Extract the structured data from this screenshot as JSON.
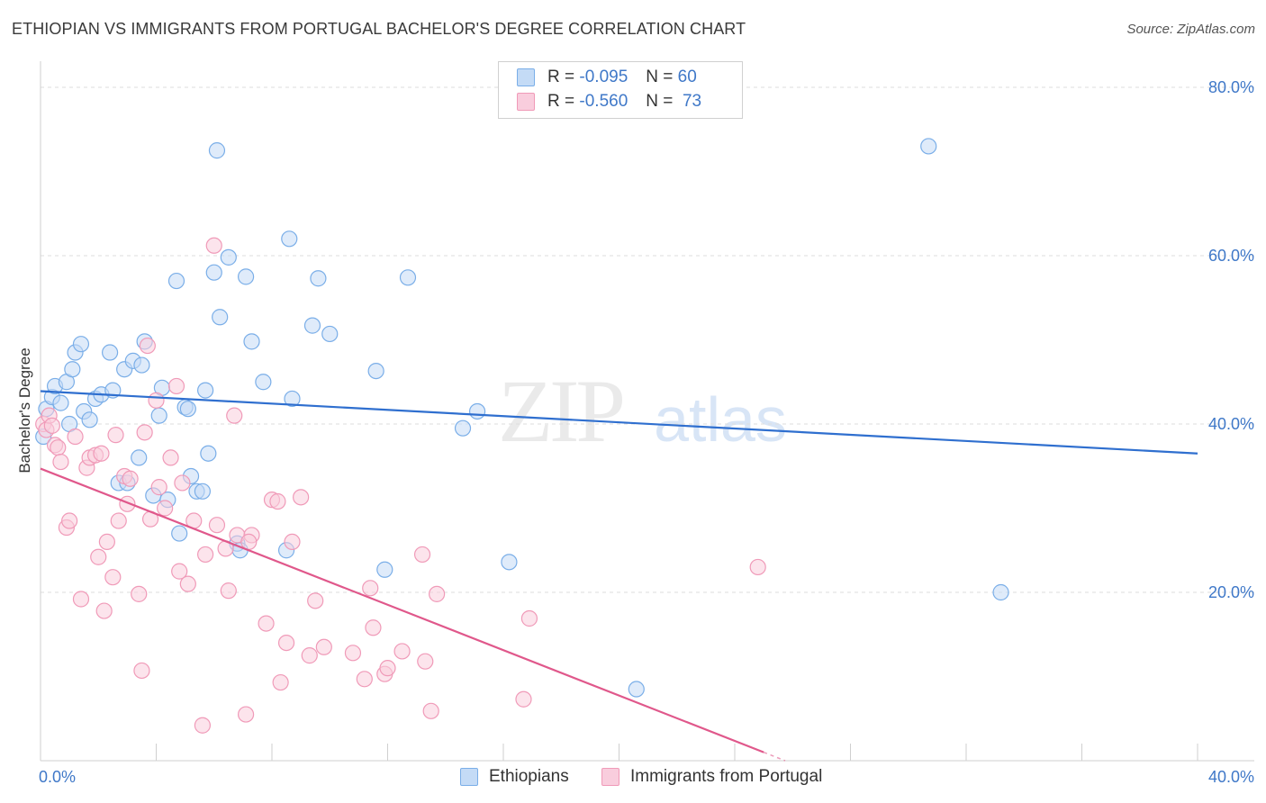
{
  "title": "ETHIOPIAN VS IMMIGRANTS FROM PORTUGAL BACHELOR'S DEGREE CORRELATION CHART",
  "source": "Source: ZipAtlas.com",
  "watermark": {
    "zip": "ZIP",
    "atlas": "atlas"
  },
  "legend": {
    "rows": [
      {
        "r_label": "R =",
        "r_value": "-0.095",
        "n_label": "N =",
        "n_value": "60"
      },
      {
        "r_label": "R =",
        "r_value": "-0.560",
        "n_label": "N =",
        "n_value": "73"
      }
    ]
  },
  "chart_data": {
    "type": "scatter",
    "title": "ETHIOPIAN VS IMMIGRANTS FROM PORTUGAL BACHELOR'S DEGREE CORRELATION CHART",
    "xlabel": "",
    "ylabel": "Bachelor's Degree",
    "xlim": [
      0,
      40
    ],
    "ylim": [
      0,
      80
    ],
    "x_tick_labels": [
      "0.0%",
      "40.0%"
    ],
    "y_ticks": [
      20,
      40,
      60,
      80
    ],
    "y_tick_labels": [
      "20.0%",
      "40.0%",
      "60.0%",
      "80.0%"
    ],
    "grid": "horizontal dashed",
    "legend_position": "top-center",
    "series": [
      {
        "name": "Ethiopians",
        "color": "#7aaee8",
        "line_color": "#2f6fcf",
        "r": -0.095,
        "n": 60,
        "trend": {
          "x": [
            0,
            40
          ],
          "y": [
            43.9,
            36.5
          ]
        },
        "points": [
          [
            0.1,
            38.5
          ],
          [
            0.2,
            41.8
          ],
          [
            0.4,
            43.2
          ],
          [
            0.5,
            44.5
          ],
          [
            0.7,
            42.5
          ],
          [
            0.9,
            45.0
          ],
          [
            1.1,
            46.5
          ],
          [
            1.2,
            48.5
          ],
          [
            1.4,
            49.5
          ],
          [
            1.5,
            41.5
          ],
          [
            1.7,
            40.5
          ],
          [
            1.9,
            43.0
          ],
          [
            2.1,
            43.5
          ],
          [
            2.4,
            48.5
          ],
          [
            2.5,
            44.0
          ],
          [
            2.7,
            33.0
          ],
          [
            2.9,
            46.5
          ],
          [
            3.0,
            33.0
          ],
          [
            3.2,
            47.5
          ],
          [
            3.4,
            36.0
          ],
          [
            3.5,
            47.0
          ],
          [
            3.6,
            49.8
          ],
          [
            3.9,
            31.5
          ],
          [
            4.1,
            41.0
          ],
          [
            4.2,
            44.3
          ],
          [
            4.4,
            31.0
          ],
          [
            4.7,
            57.0
          ],
          [
            4.8,
            27.0
          ],
          [
            5.0,
            42.0
          ],
          [
            5.1,
            41.8
          ],
          [
            5.2,
            33.8
          ],
          [
            5.4,
            32.0
          ],
          [
            5.6,
            32.0
          ],
          [
            5.7,
            44.0
          ],
          [
            5.8,
            36.5
          ],
          [
            6.0,
            58.0
          ],
          [
            6.1,
            72.5
          ],
          [
            6.2,
            52.7
          ],
          [
            6.5,
            59.8
          ],
          [
            6.8,
            25.8
          ],
          [
            6.9,
            25.0
          ],
          [
            7.1,
            57.5
          ],
          [
            7.3,
            49.8
          ],
          [
            7.7,
            45.0
          ],
          [
            8.5,
            25.0
          ],
          [
            8.6,
            62.0
          ],
          [
            8.7,
            43.0
          ],
          [
            9.4,
            51.7
          ],
          [
            9.6,
            57.3
          ],
          [
            10.0,
            50.7
          ],
          [
            11.6,
            46.3
          ],
          [
            11.9,
            22.7
          ],
          [
            12.7,
            57.4
          ],
          [
            14.6,
            39.5
          ],
          [
            15.1,
            41.5
          ],
          [
            16.2,
            23.6
          ],
          [
            20.6,
            8.5
          ],
          [
            30.7,
            73.0
          ],
          [
            33.2,
            20.0
          ],
          [
            1.0,
            40.0
          ]
        ]
      },
      {
        "name": "Immigrants from Portugal",
        "color": "#f09ab8",
        "line_color": "#e0588b",
        "r": -0.56,
        "n": 73,
        "trend": {
          "x": [
            0,
            25
          ],
          "y": [
            34.7,
            1.0
          ]
        },
        "points": [
          [
            0.1,
            40.0
          ],
          [
            0.2,
            39.3
          ],
          [
            0.3,
            41.0
          ],
          [
            0.4,
            39.8
          ],
          [
            0.5,
            37.5
          ],
          [
            0.6,
            37.2
          ],
          [
            0.7,
            35.5
          ],
          [
            0.9,
            27.7
          ],
          [
            1.0,
            28.5
          ],
          [
            1.2,
            38.5
          ],
          [
            1.4,
            19.2
          ],
          [
            1.6,
            34.8
          ],
          [
            1.7,
            36.0
          ],
          [
            1.9,
            36.3
          ],
          [
            2.0,
            24.2
          ],
          [
            2.1,
            36.5
          ],
          [
            2.2,
            17.8
          ],
          [
            2.3,
            26.0
          ],
          [
            2.5,
            21.8
          ],
          [
            2.6,
            38.7
          ],
          [
            2.7,
            28.5
          ],
          [
            2.9,
            33.8
          ],
          [
            3.0,
            30.5
          ],
          [
            3.1,
            33.5
          ],
          [
            3.4,
            19.8
          ],
          [
            3.5,
            10.7
          ],
          [
            3.6,
            39.0
          ],
          [
            3.7,
            49.3
          ],
          [
            3.8,
            28.7
          ],
          [
            4.0,
            42.8
          ],
          [
            4.1,
            32.5
          ],
          [
            4.3,
            30.0
          ],
          [
            4.5,
            36.0
          ],
          [
            4.7,
            44.5
          ],
          [
            4.8,
            22.5
          ],
          [
            4.9,
            33.0
          ],
          [
            5.1,
            21.0
          ],
          [
            5.3,
            28.5
          ],
          [
            5.6,
            4.2
          ],
          [
            5.7,
            24.5
          ],
          [
            6.0,
            61.2
          ],
          [
            6.1,
            28.0
          ],
          [
            6.4,
            25.2
          ],
          [
            6.5,
            20.2
          ],
          [
            6.7,
            41.0
          ],
          [
            6.8,
            26.8
          ],
          [
            7.1,
            5.5
          ],
          [
            7.3,
            26.8
          ],
          [
            7.8,
            16.3
          ],
          [
            8.0,
            31.0
          ],
          [
            8.2,
            30.8
          ],
          [
            8.3,
            9.3
          ],
          [
            8.5,
            14.0
          ],
          [
            8.7,
            26.0
          ],
          [
            9.0,
            31.3
          ],
          [
            9.3,
            12.5
          ],
          [
            9.5,
            19.0
          ],
          [
            9.8,
            13.5
          ],
          [
            10.8,
            12.8
          ],
          [
            11.2,
            9.7
          ],
          [
            11.4,
            20.5
          ],
          [
            11.5,
            15.8
          ],
          [
            11.9,
            10.3
          ],
          [
            12.0,
            11.0
          ],
          [
            12.5,
            13.0
          ],
          [
            13.2,
            24.5
          ],
          [
            13.3,
            11.8
          ],
          [
            13.5,
            5.9
          ],
          [
            13.7,
            19.8
          ],
          [
            16.7,
            7.3
          ],
          [
            16.9,
            16.9
          ],
          [
            24.8,
            23.0
          ],
          [
            7.2,
            26.0
          ]
        ]
      }
    ]
  }
}
